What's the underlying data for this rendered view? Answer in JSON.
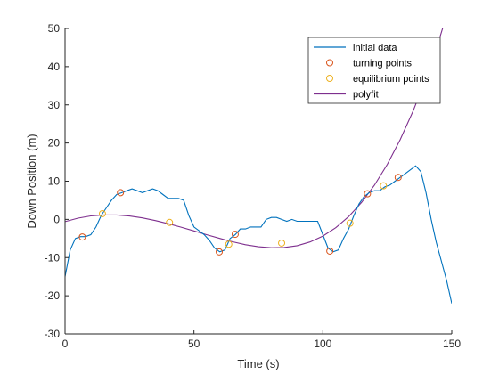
{
  "chart_data": {
    "type": "line",
    "title": "",
    "xlabel": "Time (s)",
    "ylabel": "Down Position (m)",
    "xlim": [
      0,
      150
    ],
    "ylim": [
      -30,
      50
    ],
    "xticks": [
      0,
      50,
      100,
      150
    ],
    "yticks": [
      -30,
      -20,
      -10,
      0,
      10,
      20,
      30,
      40,
      50
    ],
    "xtick_labels": [
      "0",
      "50",
      "100",
      "150"
    ],
    "ytick_labels": [
      "-30",
      "-20",
      "-10",
      "0",
      "10",
      "20",
      "30",
      "40",
      "50"
    ],
    "grid": false,
    "legend_position": "top-right",
    "series": [
      {
        "name": "initial data",
        "kind": "line",
        "color": "#0072BD",
        "x": [
          0,
          2,
          4,
          6,
          8,
          10,
          12,
          14,
          16,
          18,
          20,
          22,
          24,
          26,
          28,
          30,
          32,
          34,
          36,
          38,
          40,
          42,
          44,
          46,
          48,
          50,
          52,
          54,
          56,
          58,
          60,
          62,
          64,
          66,
          68,
          70,
          72,
          74,
          76,
          78,
          80,
          82,
          84,
          86,
          88,
          90,
          92,
          94,
          96,
          98,
          100,
          102,
          104,
          106,
          108,
          110,
          112,
          114,
          116,
          118,
          120,
          122,
          124,
          126,
          128,
          130,
          132,
          134,
          136,
          138,
          140,
          142,
          144,
          146,
          148,
          150
        ],
        "y": [
          -15,
          -8,
          -5,
          -4.5,
          -4.5,
          -4,
          -2,
          1,
          3,
          5,
          6.5,
          7,
          7.5,
          8,
          7.5,
          7,
          7.5,
          8,
          7.5,
          6.5,
          5.5,
          5.5,
          5.5,
          5,
          1,
          -2,
          -3,
          -4,
          -5.5,
          -7.5,
          -8.5,
          -8,
          -5,
          -4,
          -2.5,
          -2.5,
          -2,
          -2,
          -2,
          0,
          0.5,
          0.5,
          0,
          -0.5,
          0,
          -0.5,
          -0.5,
          -0.5,
          -0.5,
          -0.5,
          -4,
          -7.5,
          -8.5,
          -8,
          -5,
          -2.5,
          1,
          4,
          6,
          7,
          7.5,
          7.5,
          8.5,
          9,
          10,
          11,
          12,
          13,
          14,
          12.5,
          7,
          0,
          -6,
          -11,
          -16,
          -22
        ]
      },
      {
        "name": "turning points",
        "kind": "markers",
        "color": "#D95319",
        "x": [
          6.7,
          21.5,
          59.8,
          66,
          102.7,
          117.3,
          129.2
        ],
        "y": [
          -4.6,
          7,
          -8.5,
          -3.9,
          -8.3,
          6.7,
          11
        ]
      },
      {
        "name": "equilibrium points",
        "kind": "markers",
        "color": "#EDB120",
        "x": [
          14.5,
          40.5,
          63.5,
          84,
          110.5,
          123.5
        ],
        "y": [
          1.5,
          -0.8,
          -6.5,
          -6.2,
          -1,
          8.8
        ]
      },
      {
        "name": "polyfit",
        "kind": "line",
        "color": "#7E2F8E",
        "x": [
          0,
          5,
          10,
          15,
          20,
          25,
          30,
          35,
          40,
          45,
          50,
          55,
          60,
          65,
          70,
          75,
          80,
          85,
          90,
          95,
          100,
          105,
          110,
          115,
          120,
          125,
          130,
          135,
          140,
          145,
          150
        ],
        "y": [
          -0.6,
          0.33,
          0.91,
          1.17,
          1.15,
          0.87,
          0.38,
          -0.31,
          -1.13,
          -2.04,
          -3.02,
          -4.01,
          -4.98,
          -5.87,
          -6.62,
          -7.16,
          -7.43,
          -7.36,
          -6.88,
          -5.91,
          -4.36,
          -2.17,
          0.74,
          4.43,
          8.96,
          14.42,
          20.87,
          28.37,
          36.99,
          46.8,
          57.88
        ]
      }
    ]
  }
}
